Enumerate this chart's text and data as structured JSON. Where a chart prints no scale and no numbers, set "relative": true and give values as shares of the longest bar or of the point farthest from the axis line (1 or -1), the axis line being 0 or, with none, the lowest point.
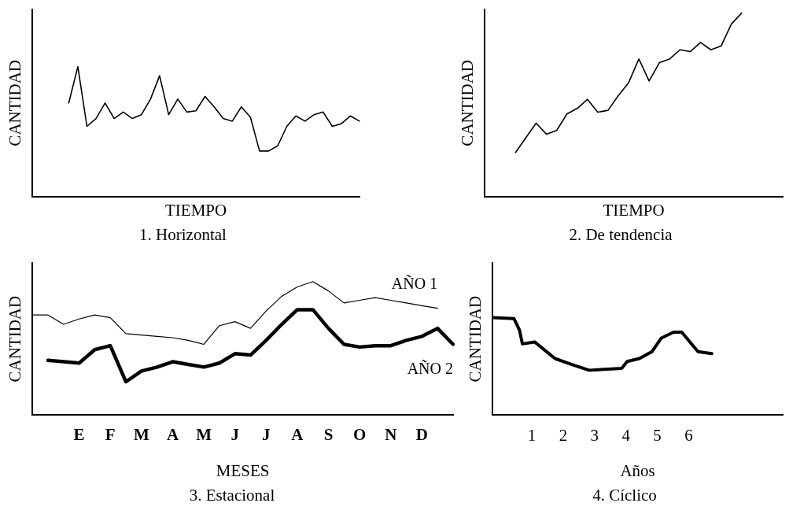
{
  "chart_data": [
    {
      "type": "line",
      "title": "1. Horizontal",
      "xlabel": "TIEMPO",
      "ylabel": "CANTIDAD",
      "relative": true,
      "marker": "none",
      "tick_labels": false,
      "categories": [
        null,
        null,
        null,
        null,
        null,
        null,
        null,
        null,
        null,
        null,
        null,
        null,
        null,
        null,
        null,
        null,
        null,
        null,
        null,
        null,
        null,
        null,
        null,
        null,
        null,
        null,
        null,
        null,
        null,
        null,
        null,
        null,
        null,
        null,
        null,
        null,
        null
      ],
      "series": [
        {
          "color": "#000000",
          "values": [
            null,
            null,
            null,
            null,
            0.72,
            1.0,
            0.54,
            0.6,
            0.72,
            0.6,
            0.65,
            0.6,
            0.63,
            0.75,
            0.93,
            0.63,
            0.75,
            0.65,
            0.66,
            0.77,
            0.69,
            0.6,
            0.58,
            0.69,
            0.61,
            0.35,
            0.35,
            0.39,
            0.54,
            0.62,
            0.58,
            0.63,
            0.65,
            0.54,
            0.56,
            0.62,
            0.58
          ]
        }
      ]
    },
    {
      "type": "line",
      "title": "2. De tendencia",
      "xlabel": "TIEMPO",
      "ylabel": "CANTIDAD",
      "relative": true,
      "marker": "none",
      "tick_labels": false,
      "categories": [
        null,
        null,
        null,
        null,
        null,
        null,
        null,
        null,
        null,
        null,
        null,
        null,
        null,
        null,
        null,
        null,
        null,
        null,
        null,
        null,
        null,
        null,
        null,
        null,
        null,
        null,
        null,
        null,
        null,
        null
      ],
      "series": [
        {
          "color": "#000000",
          "values": [
            null,
            null,
            null,
            0.24,
            0.32,
            0.4,
            0.34,
            0.36,
            0.45,
            0.48,
            0.53,
            0.46,
            0.47,
            0.55,
            0.62,
            0.75,
            0.63,
            0.73,
            0.75,
            0.8,
            0.79,
            0.84,
            0.8,
            0.82,
            0.94,
            1.0,
            null,
            null,
            null,
            null
          ]
        }
      ]
    },
    {
      "type": "line",
      "title": "3. Estacional",
      "xlabel": "MESES",
      "ylabel": "CANTIDAD",
      "relative": true,
      "marker": "none",
      "tick_labels": "x",
      "categories": [
        null,
        null,
        null,
        "E",
        null,
        "F",
        null,
        "M",
        null,
        "A",
        null,
        "M",
        null,
        "J",
        null,
        "J",
        null,
        "A",
        null,
        "S",
        null,
        "O",
        null,
        "N",
        null,
        "D",
        null,
        null
      ],
      "series": [
        {
          "name": "AÑO 1",
          "color": "#000000",
          "values": [
            0.75,
            0.75,
            0.68,
            0.72,
            0.75,
            0.73,
            0.61,
            0.6,
            0.59,
            0.58,
            0.56,
            0.53,
            0.67,
            0.7,
            0.65,
            0.78,
            0.89,
            0.96,
            1.0,
            0.93,
            0.84,
            0.86,
            0.88,
            0.86,
            0.84,
            0.82,
            0.8,
            null
          ]
        },
        {
          "name": "AÑO 2",
          "color": "#000000",
          "values": [
            null,
            0.41,
            0.4,
            0.39,
            0.49,
            0.52,
            0.25,
            0.33,
            0.36,
            0.4,
            0.38,
            0.36,
            0.39,
            0.46,
            0.45,
            0.56,
            0.68,
            0.79,
            0.79,
            0.65,
            0.53,
            0.51,
            0.52,
            0.52,
            0.56,
            0.59,
            0.65,
            0.53
          ]
        }
      ]
    },
    {
      "type": "line",
      "title": "4. Cíclico",
      "xlabel": "Años",
      "ylabel": "CANTIDAD",
      "relative": true,
      "marker": "none",
      "tick_labels": "x",
      "xlim": [
        -0.25,
        9
      ],
      "xticks": [
        1,
        2,
        3,
        4,
        5,
        6
      ],
      "x": [
        -0.24,
        0.43,
        0.61,
        0.7,
        1.09,
        1.74,
        2.26,
        2.83,
        3.87,
        4.04,
        4.43,
        4.83,
        5.13,
        5.52,
        5.78,
        6.3,
        6.74
      ],
      "series": [
        {
          "color": "#000000",
          "values": [
            1.0,
            0.99,
            0.87,
            0.73,
            0.75,
            0.58,
            0.52,
            0.46,
            0.48,
            0.55,
            0.58,
            0.65,
            0.79,
            0.85,
            0.85,
            0.65,
            0.63
          ]
        }
      ]
    }
  ]
}
